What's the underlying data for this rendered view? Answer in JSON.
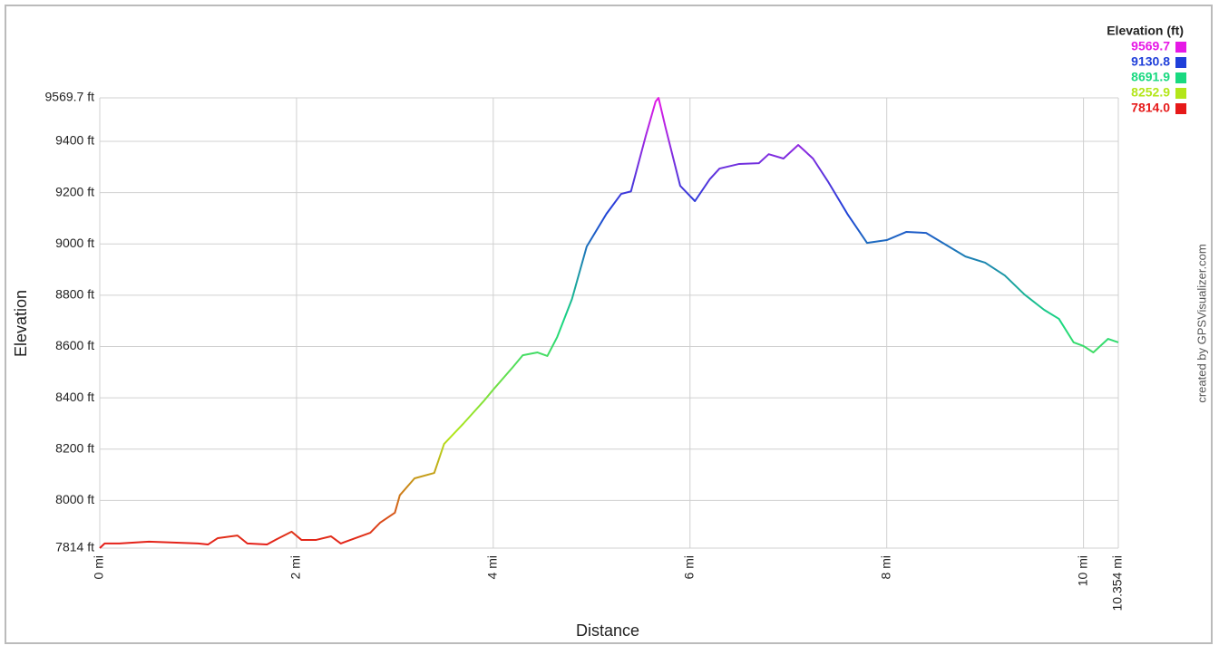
{
  "chart_data": {
    "type": "line",
    "x_label": "Distance",
    "y_label": "Elevation",
    "credit": "created by GPSVisualizer.com",
    "legend_title": "Elevation (ft)",
    "color_scale": [
      {
        "value": 9569.7,
        "color": "#e619e6"
      },
      {
        "value": 9130.8,
        "color": "#1f3fd9"
      },
      {
        "value": 8691.9,
        "color": "#19d980"
      },
      {
        "value": 8252.9,
        "color": "#b3e619"
      },
      {
        "value": 7814,
        "label": "7814.0",
        "color": "#e61919"
      }
    ],
    "xlim": [
      0,
      10.354
    ],
    "ylim": [
      7814,
      9569.7
    ],
    "xticks": [
      {
        "value": 0,
        "label": "0 mi"
      },
      {
        "value": 2,
        "label": "2 mi"
      },
      {
        "value": 4,
        "label": "4 mi"
      },
      {
        "value": 6,
        "label": "6 mi"
      },
      {
        "value": 8,
        "label": "8 mi"
      },
      {
        "value": 10,
        "label": "10 mi"
      },
      {
        "value": 10.354,
        "label": "10.354 mi"
      }
    ],
    "yticks": [
      {
        "value": 7814,
        "label": "7814 ft"
      },
      {
        "value": 8000,
        "label": "8000 ft"
      },
      {
        "value": 8200,
        "label": "8200 ft"
      },
      {
        "value": 8400,
        "label": "8400 ft"
      },
      {
        "value": 8600,
        "label": "8600 ft"
      },
      {
        "value": 8800,
        "label": "8800 ft"
      },
      {
        "value": 9000,
        "label": "9000 ft"
      },
      {
        "value": 9200,
        "label": "9200 ft"
      },
      {
        "value": 9400,
        "label": "9400 ft"
      },
      {
        "value": 9569.7,
        "label": "9569.7 ft"
      }
    ],
    "grid": true,
    "x": [
      0,
      0.05,
      0.2,
      0.5,
      1.0,
      1.1,
      1.2,
      1.4,
      1.5,
      1.7,
      1.8,
      1.95,
      2.05,
      2.2,
      2.35,
      2.45,
      2.6,
      2.75,
      2.85,
      3.0,
      3.05,
      3.2,
      3.4,
      3.5,
      3.7,
      3.9,
      4.0,
      4.2,
      4.3,
      4.45,
      4.55,
      4.65,
      4.8,
      4.95,
      5.15,
      5.3,
      5.4,
      5.55,
      5.65,
      5.68,
      5.75,
      5.9,
      6.05,
      6.2,
      6.3,
      6.5,
      6.7,
      6.8,
      6.95,
      7.1,
      7.25,
      7.4,
      7.6,
      7.8,
      8.0,
      8.2,
      8.4,
      8.6,
      8.8,
      9.0,
      9.2,
      9.4,
      9.6,
      9.75,
      9.9,
      10.0,
      10.1,
      10.25,
      10.354
    ],
    "values": [
      7814,
      7832,
      7832,
      7839,
      7832,
      7828,
      7853,
      7863,
      7832,
      7828,
      7849,
      7878,
      7846,
      7846,
      7860,
      7832,
      7853,
      7874,
      7913,
      7952,
      8020,
      8086,
      8107,
      8220,
      8301,
      8386,
      8432,
      8520,
      8566,
      8577,
      8563,
      8637,
      8785,
      8990,
      9117,
      9195,
      9205,
      9421,
      9555,
      9569.7,
      9456,
      9227,
      9167,
      9252,
      9294,
      9312,
      9315,
      9350,
      9333,
      9386,
      9333,
      9245,
      9117,
      9004,
      9015,
      9047,
      9043,
      8997,
      8951,
      8927,
      8877,
      8803,
      8743,
      8708,
      8616,
      8602,
      8577,
      8630,
      8616
    ]
  }
}
